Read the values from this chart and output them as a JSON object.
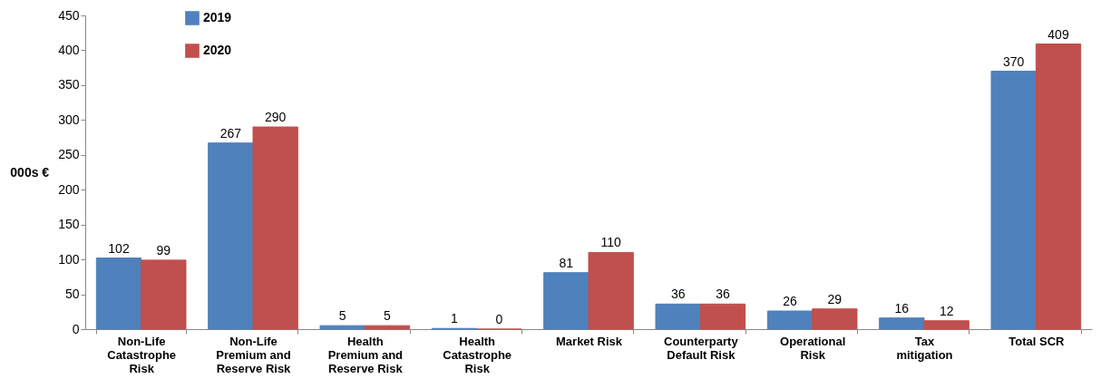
{
  "chart_data": {
    "type": "bar",
    "ylabel": "000s €",
    "categories": [
      "Non-Life Catastrophe Risk",
      "Non-Life Premium and Reserve Risk",
      "Health Premium and Reserve Risk",
      "Health Catastrophe Risk",
      "Market Risk",
      "Counterparty Default Risk",
      "Operational Risk",
      "Tax mitigation",
      "Total SCR"
    ],
    "series": [
      {
        "name": "2019",
        "color": "#4f81bd",
        "values": [
          102,
          267,
          5,
          1,
          81,
          36,
          26,
          16,
          370
        ]
      },
      {
        "name": "2020",
        "color": "#c0504d",
        "values": [
          99,
          290,
          5,
          0,
          110,
          36,
          29,
          12,
          409
        ]
      }
    ],
    "ylim": [
      0,
      450
    ],
    "yticks": [
      0,
      50,
      100,
      150,
      200,
      250,
      300,
      350,
      400,
      450
    ],
    "grid": false,
    "legend": "top left",
    "data_labels": true
  }
}
